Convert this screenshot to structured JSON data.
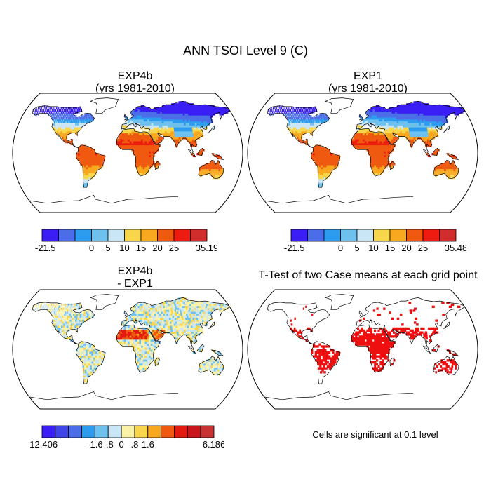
{
  "title": "ANN TSOI Level 9 (C)",
  "panels": [
    {
      "id": "exp4b",
      "title_line1": "EXP4b",
      "title_line2": "(yrs 1981-2010)",
      "type": "map",
      "style": "abs"
    },
    {
      "id": "exp1",
      "title_line1": "EXP1",
      "title_line2": "(yrs 1981-2010)",
      "type": "map",
      "style": "abs"
    },
    {
      "id": "diff",
      "title_line1": "EXP4b",
      "title_line2": "- EXP1",
      "type": "map",
      "style": "diff"
    },
    {
      "id": "ttest",
      "title_line1": "T-Test of two Case means at each grid point",
      "title_line2": "",
      "type": "map",
      "style": "ttest"
    }
  ],
  "significance_note": "Cells are significant at 0.1 level",
  "chart_data": [
    {
      "type": "heatmap",
      "title": "EXP4b (yrs 1981-2010)",
      "projection": "Robinson",
      "colorbar": {
        "levels": [
          -21.5,
          0,
          5,
          10,
          15,
          20,
          25,
          35.19
        ],
        "tick_labels": [
          "-21.5",
          "0",
          "5",
          "10",
          "15",
          "20",
          "25",
          "35.19"
        ],
        "colors": [
          "#3a1ef5",
          "#4b6ee8",
          "#2d9cee",
          "#6ec1ec",
          "#c9e6f6",
          "#f7d64c",
          "#f7a81e",
          "#f05a10",
          "#ee1c10",
          "#d22d2d"
        ]
      }
    },
    {
      "type": "heatmap",
      "title": "EXP1 (yrs 1981-2010)",
      "projection": "Robinson",
      "colorbar": {
        "levels": [
          -21.5,
          0,
          5,
          10,
          15,
          20,
          25,
          35.48
        ],
        "tick_labels": [
          "-21.5",
          "0",
          "5",
          "10",
          "15",
          "20",
          "25",
          "35.48"
        ],
        "colors": [
          "#3a1ef5",
          "#4b6ee8",
          "#2d9cee",
          "#6ec1ec",
          "#c9e6f6",
          "#f7d64c",
          "#f7a81e",
          "#f05a10",
          "#ee1c10",
          "#d22d2d"
        ]
      }
    },
    {
      "type": "heatmap",
      "title": "EXP4b - EXP1",
      "projection": "Robinson",
      "colorbar": {
        "levels": [
          -12.406,
          -1.6,
          -0.8,
          0,
          0.8,
          1.6,
          6.186
        ],
        "tick_labels": [
          "-12.406",
          "-1.6",
          "-.8",
          "0",
          ".8",
          "1.6",
          "6.186"
        ],
        "colors": [
          "#3a1ef5",
          "#3f45e8",
          "#4b6ee8",
          "#2d9cee",
          "#6ec1ec",
          "#c9e6f6",
          "#fbf2a8",
          "#f7d64c",
          "#f7a81e",
          "#f05a10",
          "#e31a10",
          "#c8161c",
          "#c83232"
        ]
      }
    },
    {
      "type": "heatmap",
      "title": "T-Test of two Case means at each grid point",
      "projection": "Robinson",
      "significant_color": "#ee1010"
    }
  ]
}
